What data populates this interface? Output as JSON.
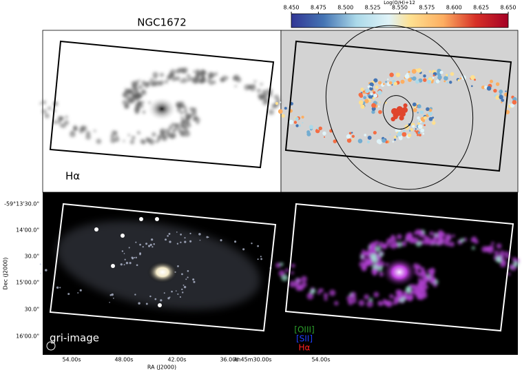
{
  "title": "NGC1672",
  "colorbar": {
    "label": "Log(O/H)+12",
    "lim": [
      8.45,
      8.65
    ],
    "ticks": [
      {
        "value": 8.45,
        "label": "8.450"
      },
      {
        "value": 8.475,
        "label": "8.475"
      },
      {
        "value": 8.5,
        "label": "8.500"
      },
      {
        "value": 8.525,
        "label": "8.525"
      },
      {
        "value": 8.55,
        "label": "8.550"
      },
      {
        "value": 8.575,
        "label": "8.575"
      },
      {
        "value": 8.6,
        "label": "8.600"
      },
      {
        "value": 8.625,
        "label": "8.625"
      },
      {
        "value": 8.65,
        "label": "8.650"
      }
    ]
  },
  "panels": {
    "halpha": "Hα",
    "gri": "gri-image",
    "legend": [
      "[OIII]",
      "[SII]",
      "Hα"
    ]
  },
  "x_axis": {
    "label": "RA (J2000)",
    "ticks": [
      "54.00s",
      "48.00s",
      "42.00s",
      "36.00s",
      "4h45m30.00s"
    ],
    "right_ticks": [
      "54.00s"
    ]
  },
  "y_axis": {
    "label": "Dec (J2000)",
    "ticks": [
      "-59°13'30.0\"",
      "14'00.0\"",
      "30.0\"",
      "15'00.0\"",
      "30.0\"",
      "16'00.0\""
    ]
  }
}
